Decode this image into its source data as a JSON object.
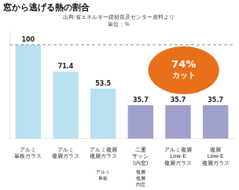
{
  "chart_data": {
    "type": "bar",
    "title": "窓から逃げる熱の割合",
    "subtitle": [
      "出典:省エネルギー建材普及センター資料より",
      "単位：%"
    ],
    "categories": [
      "アルミ\n単板ガラス",
      "アルミ\n複層ガラス",
      "アルミ複層\n複層ガラス",
      "二重\nサッシ\n(内窓)",
      "アルミ複層\nLow-E\n複層ガラス",
      "複層\nLow-E\n複層ガラス"
    ],
    "values": [
      100,
      71.4,
      53.5,
      35.7,
      35.7,
      35.7
    ],
    "colors": [
      "#b8e2f2",
      "#b8e2f2",
      "#b8e2f2",
      "#a0a0cc",
      "#a0a0cc",
      "#a0a0cc"
    ],
    "data_labels": true,
    "ylim": [
      0,
      115
    ],
    "tick_labels": "x",
    "grid": false,
    "reference_line": 100,
    "annotation": {
      "text": [
        "74%",
        "カット"
      ],
      "color": "#e8701a"
    },
    "sub_labels": [
      null,
      null,
      "アルミ\n単板",
      "複層\n複層\n内窓",
      null,
      null
    ]
  }
}
